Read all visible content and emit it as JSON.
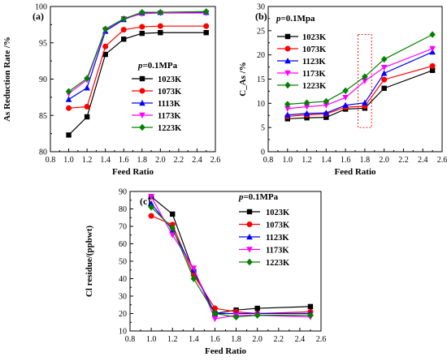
{
  "chart_data": [
    {
      "panel": "(a)",
      "type": "line",
      "xlabel": "Feed Ratio",
      "ylabel": "As Reduction Rate /%",
      "condition": {
        "prefix": "p",
        "value": "=0.1MPa"
      },
      "xlim": [
        0.8,
        2.6
      ],
      "ylim": [
        80,
        100
      ],
      "xticks": [
        0.8,
        1.0,
        1.2,
        1.4,
        1.6,
        1.8,
        2.0,
        2.2,
        2.4,
        2.6
      ],
      "xtick_labels": [
        "0.8",
        "1.0",
        "1.2",
        "1.4",
        "1.6",
        "1.8",
        "2.0",
        "2.2",
        "2.4",
        "2.6"
      ],
      "yticks": [
        80,
        85,
        90,
        95,
        100
      ],
      "ytick_labels": [
        "80",
        "85",
        "90",
        "95",
        "100"
      ],
      "x": [
        1.0,
        1.2,
        1.4,
        1.6,
        1.8,
        2.0,
        2.5
      ],
      "series": [
        {
          "name": "1023K",
          "color": "#000000",
          "marker": "square",
          "values": [
            82.3,
            84.8,
            93.4,
            95.5,
            96.3,
            96.4,
            96.4
          ]
        },
        {
          "name": "1073K",
          "color": "#ff0000",
          "marker": "circle",
          "values": [
            86.0,
            86.2,
            94.5,
            96.8,
            97.2,
            97.3,
            97.3
          ]
        },
        {
          "name": "1113K",
          "color": "#0000ff",
          "marker": "triangle-up",
          "values": [
            87.2,
            88.8,
            96.6,
            98.2,
            99.1,
            99.2,
            99.2
          ]
        },
        {
          "name": "1173K",
          "color": "#ff00ff",
          "marker": "triangle-down",
          "values": [
            88.0,
            89.9,
            96.8,
            98.3,
            99.0,
            99.1,
            99.1
          ]
        },
        {
          "name": "1223K",
          "color": "#008000",
          "marker": "diamond",
          "values": [
            88.3,
            90.1,
            96.9,
            98.3,
            99.2,
            99.2,
            99.3
          ]
        }
      ],
      "legend_position": "center-right"
    },
    {
      "panel": "(b)",
      "type": "line",
      "xlabel": "Feed Ratio",
      "ylabel": "C_As /%",
      "condition": {
        "prefix": "p",
        "value": "=0.1Mpa"
      },
      "xlim": [
        0.8,
        2.6
      ],
      "ylim": [
        0,
        30
      ],
      "xticks": [
        0.8,
        1.0,
        1.2,
        1.4,
        1.6,
        1.8,
        2.0,
        2.2,
        2.4,
        2.6
      ],
      "xtick_labels": [
        "0.8",
        "1.0",
        "1.2",
        "1.4",
        "1.6",
        "1.8",
        "2.0",
        "2.2",
        "2.4",
        "2.6"
      ],
      "yticks": [
        0,
        5,
        10,
        15,
        20,
        25,
        30
      ],
      "ytick_labels": [
        "0",
        "5",
        "10",
        "15",
        "20",
        "25",
        "30"
      ],
      "x": [
        1.0,
        1.2,
        1.4,
        1.6,
        1.8,
        2.0,
        2.5
      ],
      "series": [
        {
          "name": "1023K",
          "color": "#000000",
          "marker": "square",
          "values": [
            6.8,
            7.0,
            7.1,
            8.8,
            9.0,
            13.1,
            16.8
          ]
        },
        {
          "name": "1073K",
          "color": "#ff0000",
          "marker": "circle",
          "values": [
            7.3,
            7.6,
            7.8,
            9.2,
            9.4,
            14.9,
            17.7
          ]
        },
        {
          "name": "1123K",
          "color": "#0000ff",
          "marker": "triangle-up",
          "values": [
            7.6,
            7.9,
            8.0,
            9.6,
            10.1,
            16.2,
            20.6
          ]
        },
        {
          "name": "1173K",
          "color": "#ff00ff",
          "marker": "triangle-down",
          "values": [
            8.9,
            9.3,
            9.6,
            11.2,
            14.6,
            17.4,
            21.3
          ]
        },
        {
          "name": "1223K",
          "color": "#008000",
          "marker": "diamond",
          "values": [
            9.8,
            10.1,
            10.4,
            12.6,
            15.5,
            19.1,
            24.2
          ]
        }
      ],
      "annotation": {
        "type": "dashed-rectangle",
        "color": "#ff0000",
        "x_range": [
          1.73,
          1.87
        ],
        "y_range": [
          5.0,
          24.2
        ]
      },
      "legend_position": "upper-left"
    },
    {
      "panel": "(c)",
      "type": "line",
      "xlabel": "Feed Ratio",
      "ylabel": "Cl residue/(ppbwt)",
      "condition": {
        "prefix": "p",
        "value": "=0.1MPa"
      },
      "xlim": [
        0.8,
        2.6
      ],
      "ylim": [
        10,
        90
      ],
      "xticks": [
        0.8,
        1.0,
        1.2,
        1.4,
        1.6,
        1.8,
        2.0,
        2.2,
        2.4,
        2.6
      ],
      "xtick_labels": [
        "0.8",
        "1.0",
        "1.2",
        "1.4",
        "1.6",
        "1.8",
        "2.0",
        "2.2",
        "2.4",
        "2.6"
      ],
      "yticks": [
        10,
        20,
        30,
        40,
        50,
        60,
        70,
        80,
        90
      ],
      "ytick_labels": [
        "10",
        "20",
        "30",
        "40",
        "50",
        "60",
        "70",
        "80",
        "90"
      ],
      "x": [
        1.0,
        1.2,
        1.4,
        1.6,
        1.8,
        2.0,
        2.5
      ],
      "series": [
        {
          "name": "1023K",
          "color": "#000000",
          "marker": "square",
          "values": [
            87,
            77,
            44,
            20,
            22,
            23,
            24
          ]
        },
        {
          "name": "1073K",
          "color": "#ff0000",
          "marker": "circle",
          "values": [
            76,
            71,
            42,
            23,
            21,
            20,
            21
          ]
        },
        {
          "name": "1123K",
          "color": "#0000ff",
          "marker": "triangle-up",
          "values": [
            83,
            68,
            45,
            20,
            20,
            20,
            20
          ]
        },
        {
          "name": "1173K",
          "color": "#ff00ff",
          "marker": "triangle-down",
          "values": [
            87,
            65,
            46,
            17,
            19,
            19,
            18
          ]
        },
        {
          "name": "1223K",
          "color": "#008000",
          "marker": "diamond",
          "values": [
            81,
            69,
            40,
            20,
            18,
            19,
            19
          ]
        }
      ],
      "legend_position": "upper-right"
    }
  ]
}
